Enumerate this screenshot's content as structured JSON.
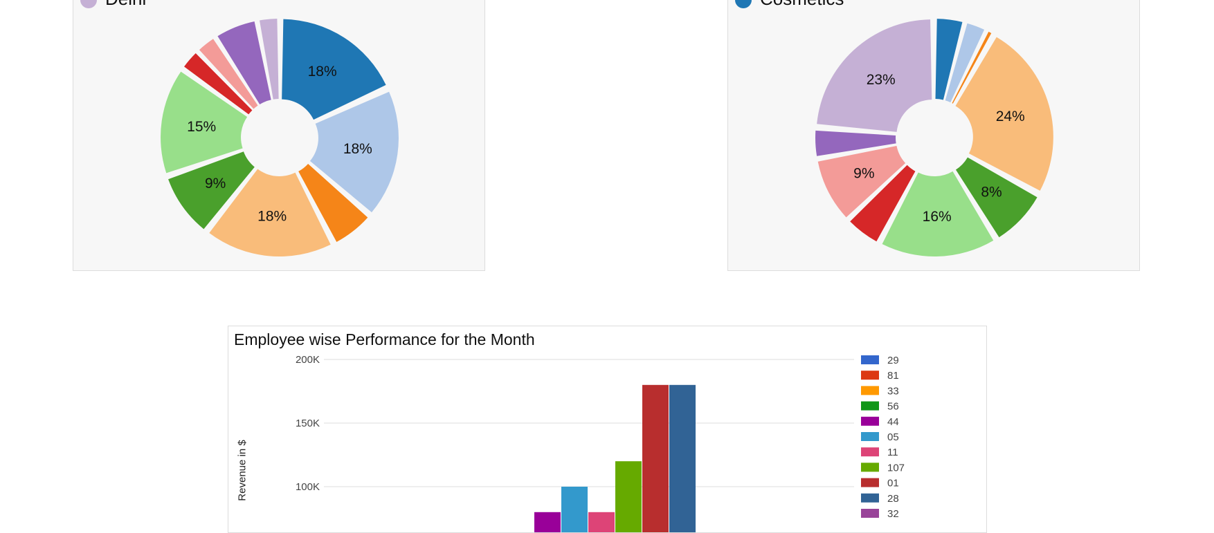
{
  "chart_data": [
    {
      "type": "pie",
      "title": "Delhi",
      "legend_color": "#c5b0d5",
      "slices": [
        {
          "pct": 18,
          "label": "18%",
          "color": "#1f77b4"
        },
        {
          "pct": 18,
          "label": "18%",
          "color": "#aec7e8"
        },
        {
          "pct": 6,
          "label": "",
          "color": "#f58518"
        },
        {
          "pct": 18,
          "label": "18%",
          "color": "#f9bc7a"
        },
        {
          "pct": 9,
          "label": "9%",
          "color": "#4aa02c"
        },
        {
          "pct": 15,
          "label": "15%",
          "color": "#98df8a"
        },
        {
          "pct": 3,
          "label": "",
          "color": "#d62728"
        },
        {
          "pct": 3,
          "label": "",
          "color": "#f39b98"
        },
        {
          "pct": 6,
          "label": "",
          "color": "#9467bd"
        },
        {
          "pct": 3,
          "label": "",
          "color": "#c5b0d5"
        }
      ]
    },
    {
      "type": "pie",
      "title": "Cosmetics",
      "legend_color": "#1f77b4",
      "slices": [
        {
          "pct": 4,
          "label": "",
          "color": "#1f77b4"
        },
        {
          "pct": 3,
          "label": "",
          "color": "#aec7e8"
        },
        {
          "pct": 1,
          "label": "",
          "color": "#f58518"
        },
        {
          "pct": 24,
          "label": "24%",
          "color": "#f9bc7a"
        },
        {
          "pct": 8,
          "label": "8%",
          "color": "#4aa02c"
        },
        {
          "pct": 16,
          "label": "16%",
          "color": "#98df8a"
        },
        {
          "pct": 5,
          "label": "",
          "color": "#d62728"
        },
        {
          "pct": 9,
          "label": "9%",
          "color": "#f39b98"
        },
        {
          "pct": 4,
          "label": "",
          "color": "#9467bd"
        },
        {
          "pct": 23,
          "label": "23%",
          "color": "#c5b0d5"
        }
      ]
    },
    {
      "type": "bar",
      "title": "Employee wise Performance for the Month",
      "ylabel": "Revenue in $",
      "ylim": [
        0,
        200000
      ],
      "yticks": [
        {
          "value": 200000,
          "label": "200K"
        },
        {
          "value": 150000,
          "label": "150K"
        },
        {
          "value": 100000,
          "label": "100K"
        }
      ],
      "series": [
        {
          "name": "29",
          "color": "#3366cc",
          "value": null
        },
        {
          "name": "81",
          "color": "#dc3912",
          "value": null
        },
        {
          "name": "33",
          "color": "#ff9900",
          "value": null
        },
        {
          "name": "56",
          "color": "#109618",
          "value": null
        },
        {
          "name": "44",
          "color": "#990099",
          "value": 80000
        },
        {
          "name": "05",
          "color": "#3399cc",
          "value": 100000
        },
        {
          "name": "11",
          "color": "#dd4477",
          "value": 80000
        },
        {
          "name": "107",
          "color": "#66aa00",
          "value": 120000
        },
        {
          "name": "01",
          "color": "#b82e2e",
          "value": 180000
        },
        {
          "name": "28",
          "color": "#316395",
          "value": 180000
        },
        {
          "name": "32",
          "color": "#994499",
          "value": null
        }
      ]
    }
  ]
}
